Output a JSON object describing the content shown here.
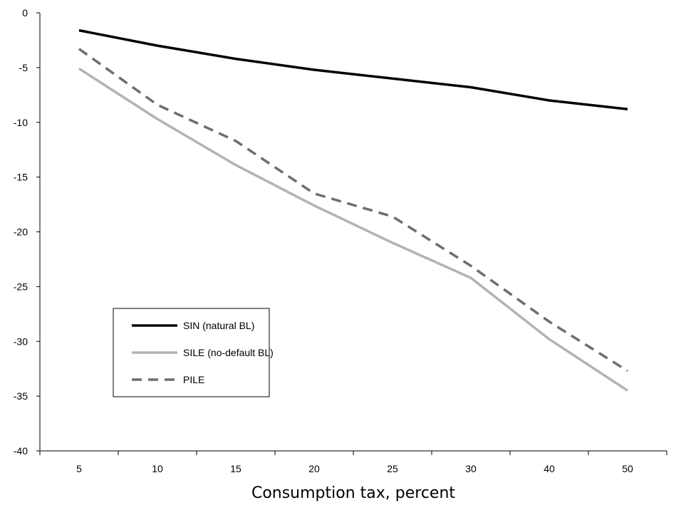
{
  "chart_data": {
    "type": "line",
    "title": "",
    "xlabel": "Consumption tax, percent",
    "ylabel": "",
    "categories": [
      "5",
      "10",
      "15",
      "20",
      "25",
      "30",
      "40",
      "50"
    ],
    "ylim": [
      -40,
      0
    ],
    "yticks": [
      0,
      -5,
      -10,
      -15,
      -20,
      -25,
      -30,
      -35,
      -40
    ],
    "grid": false,
    "legend_position": "lower-left",
    "series": [
      {
        "name": "SIN (natural BL)",
        "values": [
          -1.6,
          -3.0,
          -4.2,
          -5.2,
          -6.0,
          -6.8,
          -8.0,
          -8.8
        ],
        "color": "#000000",
        "dash": "solid"
      },
      {
        "name": "SILE (no-default BL)",
        "values": [
          -5.1,
          -9.7,
          -13.9,
          -17.6,
          -21.0,
          -24.2,
          -29.8,
          -34.5
        ],
        "color": "#b3b3b3",
        "dash": "solid"
      },
      {
        "name": "PILE",
        "values": [
          -3.3,
          -8.4,
          -11.7,
          -16.5,
          -18.6,
          -23.1,
          -28.2,
          -32.7
        ],
        "color": "#6e6e6e",
        "dash": "dashed"
      }
    ]
  }
}
